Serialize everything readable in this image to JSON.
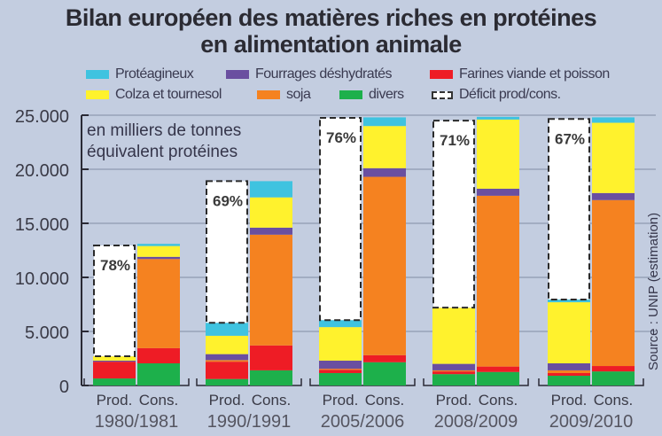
{
  "title_line1": "Bilan européen des matières riches en protéines",
  "title_line2": "en alimentation animale",
  "legend": [
    {
      "label": "Protéagineux",
      "color": "#3fc3e0",
      "key": "proteagineux"
    },
    {
      "label": "Fourrages déshydratés",
      "color": "#6a4fa0",
      "key": "fourrages"
    },
    {
      "label": "Farines viande et poisson",
      "color": "#ee1c25",
      "key": "farines"
    },
    {
      "label": "Colza et tournesol",
      "color": "#fff22d",
      "key": "colza"
    },
    {
      "label": "soja",
      "color": "#f58220",
      "key": "soja"
    },
    {
      "label": "divers",
      "color": "#1db04b",
      "key": "divers"
    },
    {
      "label": "Déficit prod/cons.",
      "color": "#ffffff",
      "key": "deficit"
    }
  ],
  "unit_line1": "en milliers de tonnes",
  "unit_line2": "équivalent protéines",
  "source": "Source : UNIP (estimation)",
  "chart_data": {
    "type": "bar",
    "stacked": true,
    "title": "Bilan européen des matières riches en protéines en alimentation animale",
    "ylabel": "en milliers de tonnes équivalent protéines",
    "ylim": [
      0,
      25000
    ],
    "yticks": [
      "0",
      "5.000",
      "10.000",
      "15.000",
      "20.000",
      "25.000"
    ],
    "ytick_values": [
      0,
      5000,
      10000,
      15000,
      20000,
      25000
    ],
    "grid": true,
    "bar_labels": [
      "Prod.",
      "Cons."
    ],
    "series_order": [
      "divers",
      "farines",
      "soja",
      "fourrages",
      "colza",
      "proteagineux"
    ],
    "groups": [
      {
        "period": "1980/1981",
        "deficit_pct": "78%",
        "prod": {
          "divers": 650,
          "farines": 1550,
          "soja": 0,
          "fourrages": 100,
          "colza": 400,
          "proteagineux": 0,
          "deficit": 10250
        },
        "cons": {
          "divers": 2050,
          "farines": 1400,
          "soja": 8250,
          "fourrages": 200,
          "colza": 1000,
          "proteagineux": 200
        }
      },
      {
        "period": "1990/1991",
        "deficit_pct": "69%",
        "prod": {
          "divers": 600,
          "farines": 1600,
          "soja": 150,
          "fourrages": 550,
          "colza": 1700,
          "proteagineux": 1200,
          "deficit": 13100
        },
        "cons": {
          "divers": 1400,
          "farines": 2300,
          "soja": 10250,
          "fourrages": 650,
          "colza": 2800,
          "proteagineux": 1500
        }
      },
      {
        "period": "2005/2006",
        "deficit_pct": "76%",
        "prod": {
          "divers": 1150,
          "farines": 300,
          "soja": 100,
          "fourrages": 750,
          "colza": 3100,
          "proteagineux": 650,
          "deficit": 18700
        },
        "cons": {
          "divers": 2150,
          "farines": 650,
          "soja": 16500,
          "fourrages": 800,
          "colza": 3900,
          "proteagineux": 800
        }
      },
      {
        "period": "2008/2009",
        "deficit_pct": "71%",
        "prod": {
          "divers": 1050,
          "farines": 250,
          "soja": 100,
          "fourrages": 600,
          "colza": 5200,
          "proteagineux": 0,
          "deficit": 17300
        },
        "cons": {
          "divers": 1250,
          "farines": 500,
          "soja": 15800,
          "fourrages": 650,
          "colza": 6400,
          "proteagineux": 250
        }
      },
      {
        "period": "2009/2010",
        "deficit_pct": "67%",
        "prod": {
          "divers": 900,
          "farines": 250,
          "soja": 250,
          "fourrages": 650,
          "colza": 5650,
          "proteagineux": 250,
          "deficit": 16700
        },
        "cons": {
          "divers": 1300,
          "farines": 500,
          "soja": 15350,
          "fourrages": 650,
          "colza": 6500,
          "proteagineux": 500
        }
      }
    ]
  }
}
